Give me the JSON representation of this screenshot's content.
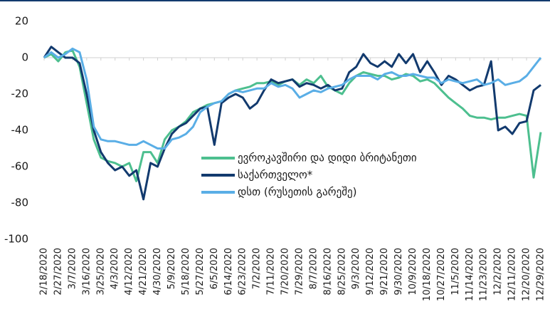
{
  "chart_data": {
    "type": "line",
    "categories": [
      "2/18/2020",
      null,
      "2/27/2020",
      null,
      "3/7/2020",
      null,
      "3/16/2020",
      null,
      "3/25/2020",
      null,
      "4/3/2020",
      null,
      "4/12/2020",
      null,
      "4/21/2020",
      null,
      "4/30/2020",
      null,
      "5/9/2020",
      null,
      "5/18/2020",
      null,
      "5/27/2020",
      null,
      "6/5/2020",
      null,
      "6/14/2020",
      null,
      "6/23/2020",
      null,
      "7/2/2020",
      null,
      "7/11/2020",
      null,
      "7/20/2020",
      null,
      "7/29/2020",
      null,
      "8/7/2020",
      null,
      "8/16/2020",
      null,
      "8/25/2020",
      null,
      "9/3/2020",
      null,
      "9/12/2020",
      null,
      "9/21/2020",
      null,
      "9/30/2020",
      null,
      "10/9/2020",
      null,
      "10/18/2020",
      null,
      "10/27/2020",
      null,
      "11/5/2020",
      null,
      "11/14/2020",
      null,
      "11/23/2020",
      null,
      "12/2/2020",
      null,
      "12/11/2020",
      null,
      "12/20/2020",
      null,
      "12/29/2020"
    ],
    "series": [
      {
        "name": "ევროკავშირი და დიდი ბრიტანეთი",
        "color": "#4dbf8f",
        "values": [
          0,
          2,
          -2,
          3,
          4,
          -5,
          -25,
          -45,
          -55,
          -57,
          -58,
          -60,
          -58,
          -68,
          -52,
          -52,
          -58,
          -45,
          -40,
          -38,
          -35,
          -30,
          -28,
          -26,
          -25,
          -24,
          -20,
          -18,
          -17,
          -16,
          -14,
          -14,
          -13,
          -15,
          -13,
          -12,
          -15,
          -12,
          -14,
          -10,
          -16,
          -18,
          -20,
          -14,
          -10,
          -8,
          -9,
          -10,
          -10,
          -12,
          -11,
          -9,
          -10,
          -13,
          -12,
          -14,
          -18,
          -22,
          -25,
          -28,
          -32,
          -33,
          -33,
          -34,
          -33,
          -33,
          -32,
          -31,
          -32,
          -66,
          -41
        ]
      },
      {
        "name": "საქართველო*",
        "color": "#123a6e",
        "values": [
          0,
          6,
          3,
          0,
          0,
          -3,
          -20,
          -40,
          -52,
          -58,
          -62,
          -60,
          -65,
          -62,
          -78,
          -58,
          -60,
          -50,
          -42,
          -38,
          -36,
          -32,
          -28,
          -27,
          -48,
          -25,
          -22,
          -20,
          -22,
          -28,
          -25,
          -18,
          -12,
          -14,
          -13,
          -12,
          -16,
          -14,
          -15,
          -17,
          -15,
          -18,
          -17,
          -8,
          -5,
          2,
          -3,
          -5,
          -2,
          -5,
          2,
          -3,
          2,
          -8,
          -2,
          -8,
          -15,
          -10,
          -12,
          -15,
          -18,
          -16,
          -15,
          -2,
          -40,
          -38,
          -42,
          -36,
          -35,
          -18,
          -15
        ]
      },
      {
        "name": "დსთ (რუსეთის გარეშე)",
        "color": "#5aaee6",
        "values": [
          0,
          3,
          0,
          2,
          5,
          3,
          -12,
          -38,
          -45,
          -46,
          -46,
          -47,
          -48,
          -48,
          -46,
          -48,
          -50,
          -50,
          -45,
          -44,
          -42,
          -38,
          -30,
          -27,
          -25,
          -24,
          -20,
          -18,
          -19,
          -18,
          -17,
          -17,
          -14,
          -16,
          -15,
          -17,
          -22,
          -20,
          -18,
          -19,
          -17,
          -16,
          -15,
          -12,
          -10,
          -10,
          -10,
          -12,
          -9,
          -8,
          -10,
          -10,
          -9,
          -10,
          -11,
          -11,
          -14,
          -12,
          -13,
          -14,
          -13,
          -12,
          -15,
          -14,
          -12,
          -15,
          -14,
          -13,
          -10,
          -5,
          0
        ]
      }
    ],
    "ylim": [
      -100,
      20
    ],
    "yticks": [
      -100,
      -80,
      -60,
      -40,
      -20,
      0,
      20
    ]
  }
}
